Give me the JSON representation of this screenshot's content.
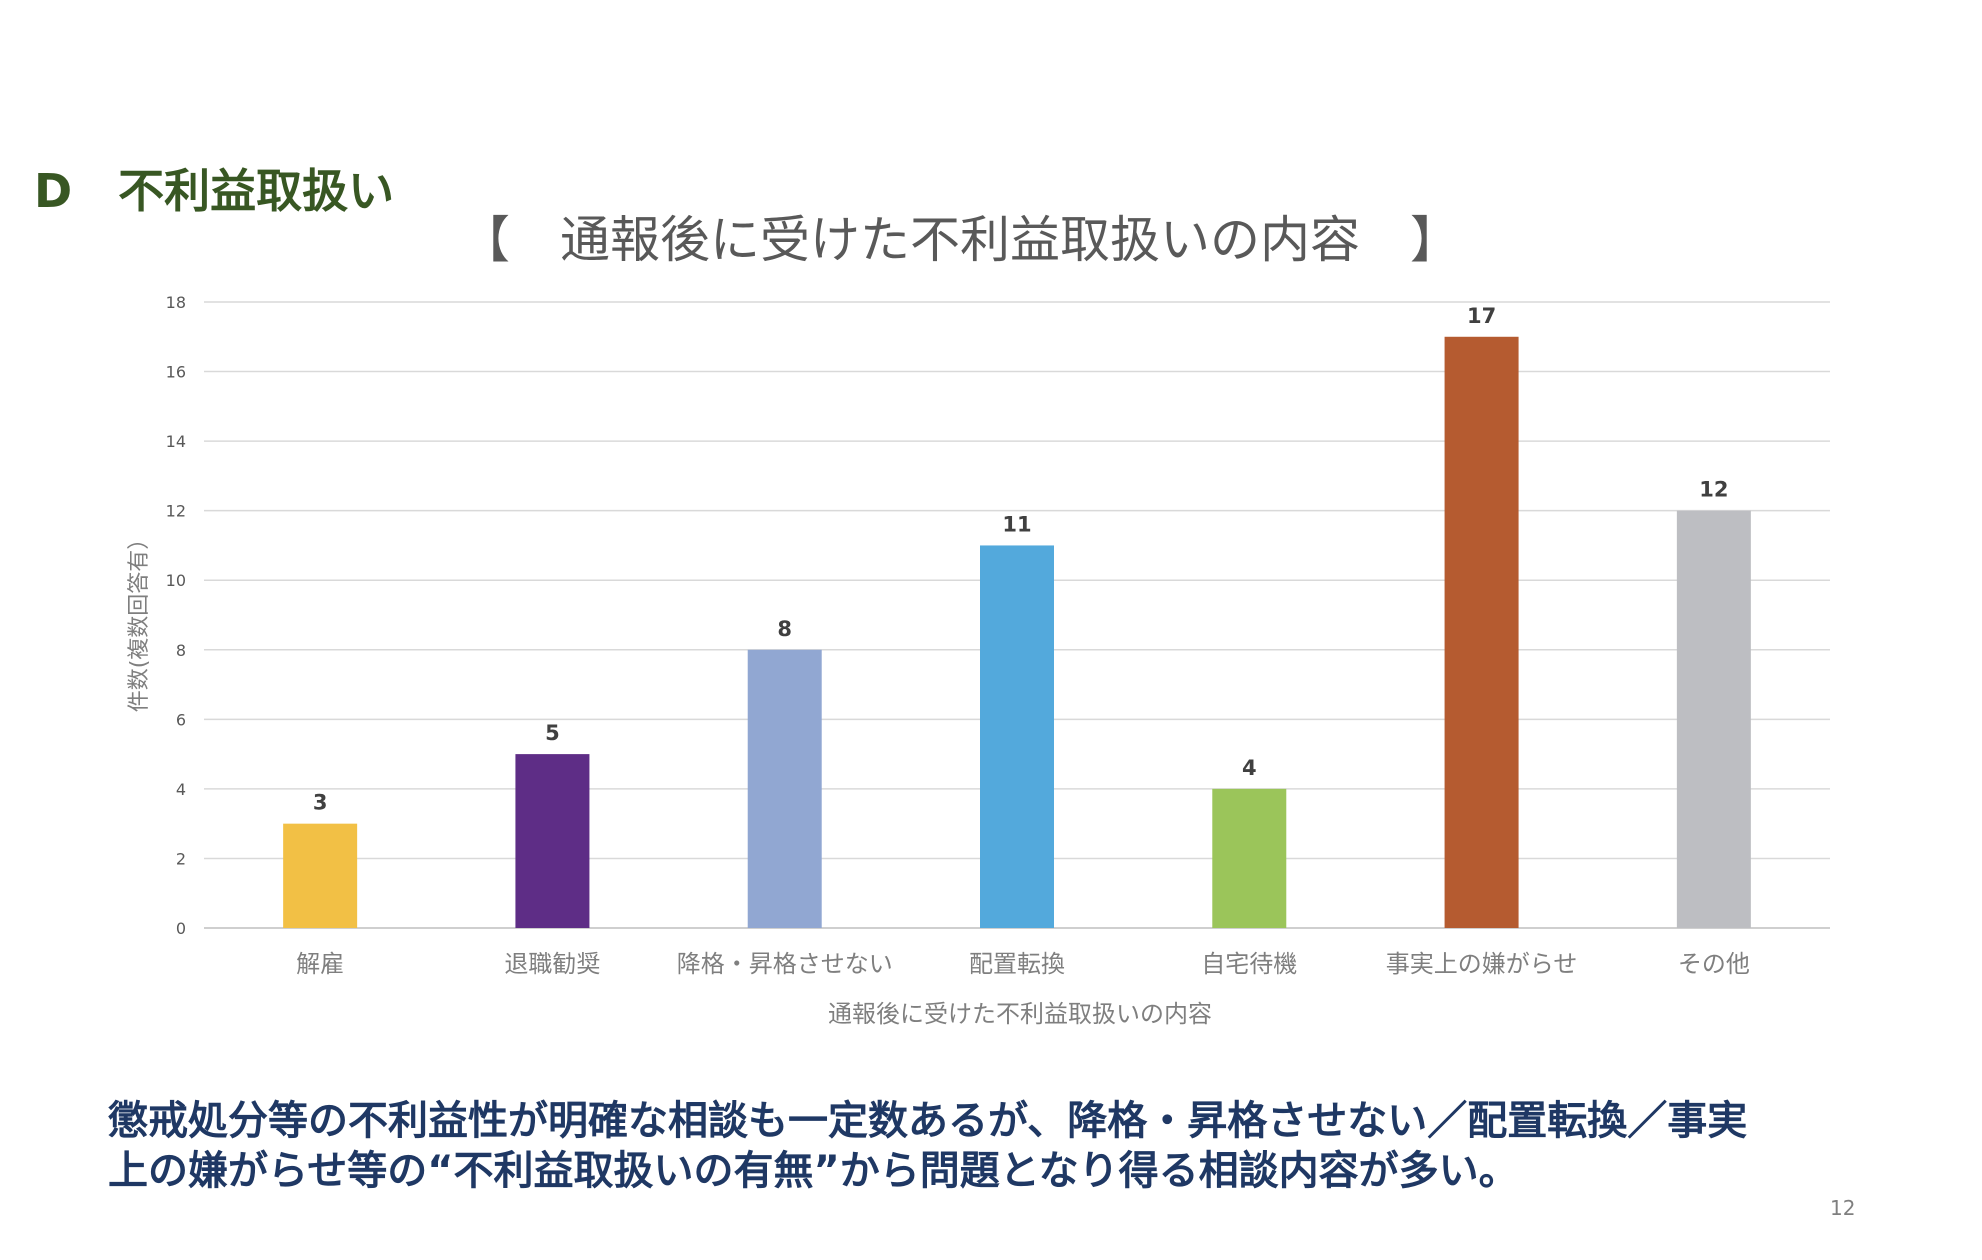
{
  "section_heading": "D　不利益取扱い",
  "chart_data": {
    "type": "bar",
    "title": "【　通報後に受けた不利益取扱いの内容　】",
    "xlabel": "通報後に受けた不利益取扱いの内容",
    "ylabel": "件数(複数回答有）",
    "categories": [
      "解雇",
      "退職勧奨",
      "降格・昇格させない",
      "配置転換",
      "自宅待機",
      "事実上の嫌がらせ",
      "その他"
    ],
    "values": [
      3,
      5,
      8,
      11,
      4,
      17,
      12
    ],
    "colors": [
      "#f2c045",
      "#5e2d86",
      "#91a7d2",
      "#53a9dc",
      "#9bc55a",
      "#b55b30",
      "#bdbec2"
    ],
    "ylim": [
      0,
      18
    ],
    "yticks": [
      0,
      2,
      4,
      6,
      8,
      10,
      12,
      14,
      16,
      18
    ],
    "grid": true,
    "data_labels": true
  },
  "summary": {
    "line1": "懲戒処分等の不利益性が明確な相談も一定数あるが、降格・昇格させない／配置転換／事実",
    "line2": "上の嫌がらせ等の“不利益取扱いの有無”から問題となり得る相談内容が多い。"
  },
  "page_number": "12"
}
